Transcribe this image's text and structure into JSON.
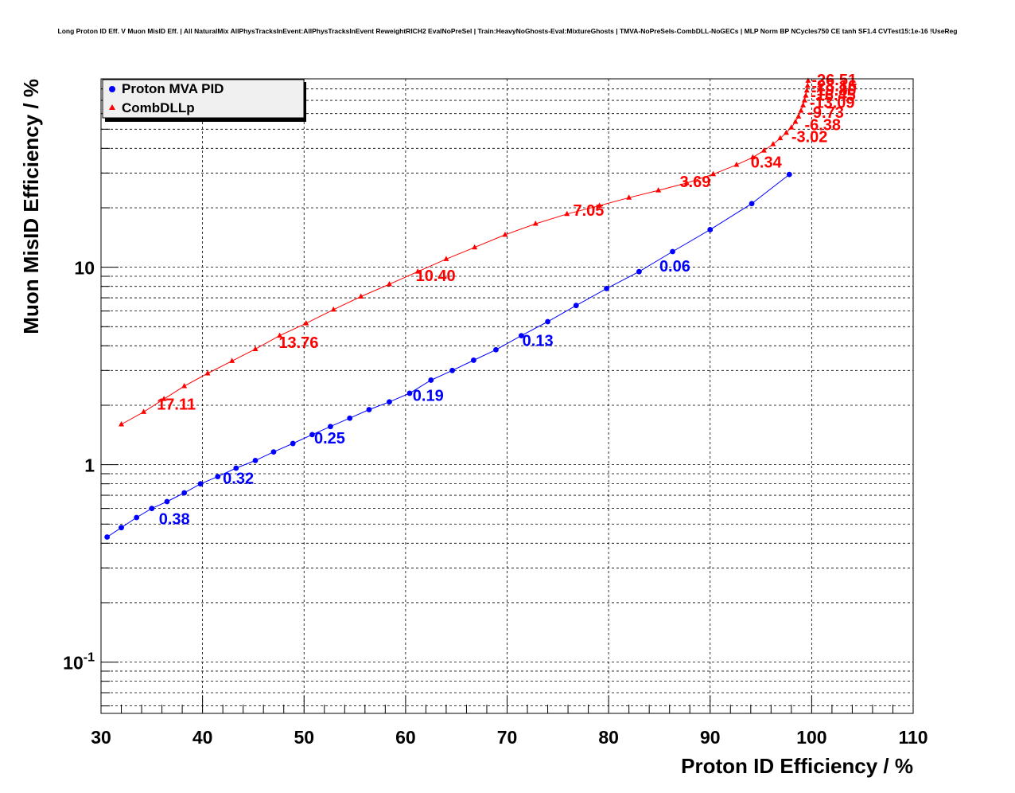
{
  "colors": {
    "series_blue": "#0000ff",
    "series_red": "#ff0000",
    "legend_bg": "#f0f0f0"
  },
  "chart_data": {
    "type": "line",
    "title": "Long Proton ID Eff. V Muon MisID Eff. | All NaturalMix AllPhysTracksInEvent:AllPhysTracksInEvent ReweightRICH2 EvalNoPreSel | Train:HeavyNoGhosts-Eval:MixtureGhosts | TMVA-NoPreSels-CombDLL-NoGECs | MLP Norm BP NCycles750 CE tanh SF1.4 CVTest15:1e-16 !UseReg",
    "xlabel": "Proton ID Efficiency / %",
    "ylabel": "Muon MisID Efficiency / %",
    "xlim": [
      30,
      110
    ],
    "ylim": [
      0.055,
      90
    ],
    "yscale": "log",
    "grid": true,
    "legend_position": "top-left",
    "x_ticks": [
      "30",
      "40",
      "50",
      "60",
      "70",
      "80",
      "90",
      "100",
      "110"
    ],
    "y_ticks": [
      {
        "value": 0.1,
        "base": "10",
        "exp": "-1"
      },
      {
        "value": 1,
        "base": "1",
        "exp": ""
      },
      {
        "value": 10,
        "base": "10",
        "exp": ""
      }
    ],
    "series": [
      {
        "name": "Proton MVA PID",
        "marker": "circle",
        "color": "#0000ff",
        "points": [
          [
            30.6,
            0.43
          ],
          [
            32.0,
            0.48
          ],
          [
            33.5,
            0.54
          ],
          [
            35.0,
            0.6
          ],
          [
            36.5,
            0.65
          ],
          [
            38.2,
            0.72
          ],
          [
            39.8,
            0.8
          ],
          [
            41.5,
            0.87
          ],
          [
            43.3,
            0.96
          ],
          [
            45.2,
            1.05
          ],
          [
            47.0,
            1.16
          ],
          [
            48.9,
            1.28
          ],
          [
            50.8,
            1.42
          ],
          [
            52.6,
            1.56
          ],
          [
            54.5,
            1.72
          ],
          [
            56.4,
            1.9
          ],
          [
            58.4,
            2.08
          ],
          [
            60.4,
            2.3
          ],
          [
            62.5,
            2.68
          ],
          [
            64.6,
            3.0
          ],
          [
            66.7,
            3.38
          ],
          [
            68.9,
            3.82
          ],
          [
            71.4,
            4.5
          ],
          [
            74.0,
            5.3
          ],
          [
            76.8,
            6.4
          ],
          [
            79.8,
            7.8
          ],
          [
            83.0,
            9.5
          ],
          [
            86.3,
            12.0
          ],
          [
            90.0,
            15.5
          ],
          [
            94.1,
            21.0
          ],
          [
            97.8,
            29.5
          ]
        ],
        "annotations": [
          {
            "x": 35.7,
            "y": 0.5,
            "text": "0.38"
          },
          {
            "x": 42.0,
            "y": 0.8,
            "text": "0.32"
          },
          {
            "x": 51.0,
            "y": 1.28,
            "text": "0.25"
          },
          {
            "x": 60.7,
            "y": 2.1,
            "text": "0.19"
          },
          {
            "x": 71.5,
            "y": 4.0,
            "text": "0.13"
          },
          {
            "x": 85.0,
            "y": 9.5,
            "text": "0.06"
          }
        ]
      },
      {
        "name": "CombDLLp",
        "marker": "triangle",
        "color": "#ff0000",
        "points": [
          [
            32.0,
            1.6
          ],
          [
            34.2,
            1.85
          ],
          [
            36.2,
            2.15
          ],
          [
            38.2,
            2.5
          ],
          [
            40.5,
            2.9
          ],
          [
            42.9,
            3.35
          ],
          [
            45.2,
            3.85
          ],
          [
            47.6,
            4.5
          ],
          [
            50.2,
            5.2
          ],
          [
            52.9,
            6.1
          ],
          [
            55.6,
            7.1
          ],
          [
            58.4,
            8.2
          ],
          [
            61.2,
            9.5
          ],
          [
            64.0,
            11.0
          ],
          [
            66.8,
            12.6
          ],
          [
            69.8,
            14.6
          ],
          [
            72.8,
            16.6
          ],
          [
            75.9,
            18.6
          ],
          [
            79.1,
            20.5
          ],
          [
            82.0,
            22.5
          ],
          [
            84.9,
            24.5
          ],
          [
            87.7,
            26.7
          ],
          [
            90.3,
            29.6
          ],
          [
            92.6,
            33.0
          ],
          [
            94.2,
            36.0
          ],
          [
            95.3,
            39.0
          ],
          [
            96.2,
            42.0
          ],
          [
            96.9,
            45.0
          ],
          [
            97.5,
            48.0
          ],
          [
            98.0,
            51.0
          ],
          [
            98.4,
            54.5
          ],
          [
            98.7,
            58.0
          ],
          [
            98.95,
            62.0
          ],
          [
            99.15,
            66.0
          ],
          [
            99.3,
            70.0
          ],
          [
            99.42,
            74.0
          ],
          [
            99.52,
            78.5
          ],
          [
            99.6,
            83.0
          ],
          [
            99.65,
            88.0
          ]
        ],
        "annotations": [
          {
            "x": 35.5,
            "y": 1.9,
            "text": "17.11"
          },
          {
            "x": 47.5,
            "y": 3.9,
            "text": "13.76"
          },
          {
            "x": 61.0,
            "y": 8.5,
            "text": "10.40"
          },
          {
            "x": 76.5,
            "y": 18.2,
            "text": "7.05"
          },
          {
            "x": 87.0,
            "y": 25.5,
            "text": "3.69"
          },
          {
            "x": 94.0,
            "y": 32.0,
            "text": "0.34"
          },
          {
            "x": 98.0,
            "y": 43.0,
            "text": "-3.02"
          },
          {
            "x": 99.3,
            "y": 49.5,
            "text": "-6.38"
          },
          {
            "x": 99.6,
            "y": 57.0,
            "text": "-9.73"
          },
          {
            "x": 99.8,
            "y": 64.0,
            "text": "-13.09"
          },
          {
            "x": 99.9,
            "y": 70.0,
            "text": "-16.45"
          },
          {
            "x": 99.95,
            "y": 74.0,
            "text": "-19.80"
          },
          {
            "x": 100.0,
            "y": 78.0,
            "text": "-23.16"
          },
          {
            "x": 100.0,
            "y": 83.5,
            "text": "-26.51"
          }
        ]
      }
    ]
  }
}
